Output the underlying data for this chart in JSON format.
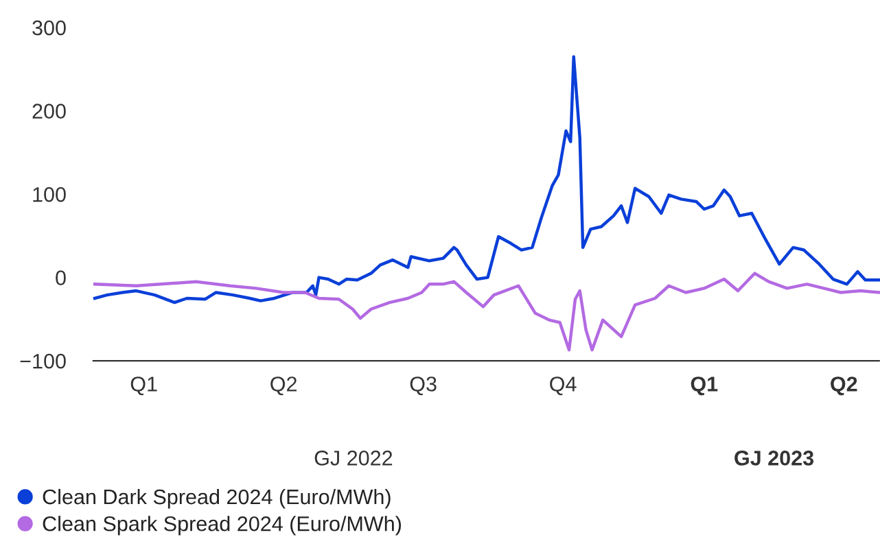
{
  "chart_data": {
    "type": "line",
    "xlim": [
      "2022-01-13",
      "2023-06-09"
    ],
    "xticks": [
      {
        "value": "2022-02-15",
        "label": "Q1"
      },
      {
        "value": "2022-05-17",
        "label": "Q2"
      },
      {
        "value": "2022-08-16",
        "label": "Q3"
      },
      {
        "value": "2022-11-15",
        "label": "Q4"
      },
      {
        "value": "2023-02-15",
        "label": "Q1"
      },
      {
        "value": "2023-05-17",
        "label": "Q2"
      }
    ],
    "ylim": [
      -100,
      300
    ],
    "yticks": [
      {
        "value": -100,
        "label": "−100"
      },
      0,
      100,
      200,
      300
    ],
    "annotations": [
      "GJ 2022",
      "GJ 2023"
    ],
    "legend": "bottom",
    "series": [
      {
        "name": "Clean Dark Spread 2024 (Euro/MWh)",
        "color": "#0a3fd8",
        "x": [
          "2022-01-14",
          "2022-01-22",
          "2022-02-01",
          "2022-02-10",
          "2022-02-22",
          "2022-03-07",
          "2022-03-15",
          "2022-03-27",
          "2022-04-03",
          "2022-04-14",
          "2022-04-25",
          "2022-05-02",
          "2022-05-11",
          "2022-05-23",
          "2022-06-01",
          "2022-06-05",
          "2022-06-07",
          "2022-06-09",
          "2022-06-15",
          "2022-06-22",
          "2022-06-27",
          "2022-07-04",
          "2022-07-13",
          "2022-07-19",
          "2022-07-27",
          "2022-08-06",
          "2022-08-08",
          "2022-08-20",
          "2022-08-29",
          "2022-09-05",
          "2022-09-07",
          "2022-09-13",
          "2022-09-20",
          "2022-09-27",
          "2022-10-04",
          "2022-10-12",
          "2022-10-19",
          "2022-10-26",
          "2022-11-01",
          "2022-11-08",
          "2022-11-12",
          "2022-11-17",
          "2022-11-20",
          "2022-11-22",
          "2022-11-26",
          "2022-11-28",
          "2022-12-03",
          "2022-12-10",
          "2022-12-18",
          "2022-12-23",
          "2022-12-27",
          "2023-01-01",
          "2023-01-10",
          "2023-01-18",
          "2023-01-23",
          "2023-01-31",
          "2023-02-10",
          "2023-02-15",
          "2023-02-21",
          "2023-02-28",
          "2023-03-04",
          "2023-03-10",
          "2023-03-18",
          "2023-03-26",
          "2023-04-05",
          "2023-04-14",
          "2023-04-21",
          "2023-05-01",
          "2023-05-10",
          "2023-05-19",
          "2023-05-26",
          "2023-05-31",
          "2023-06-09"
        ],
        "values": [
          -25,
          -21,
          -18,
          -16,
          -21,
          -30,
          -25,
          -26,
          -18,
          -21,
          -25,
          -28,
          -25,
          -18,
          -18,
          -10,
          -21,
          0,
          -2,
          -8,
          -2,
          -3,
          5,
          15,
          21,
          12,
          25,
          20,
          23,
          36,
          33,
          15,
          -2,
          0,
          49,
          41,
          33,
          36,
          72,
          110,
          123,
          176,
          163,
          265,
          168,
          36,
          58,
          61,
          74,
          86,
          66,
          107,
          97,
          77,
          99,
          94,
          91,
          82,
          86,
          105,
          97,
          74,
          77,
          49,
          16,
          36,
          33,
          16,
          -2,
          -8,
          7,
          -3,
          -3
        ]
      },
      {
        "name": "Clean Spark Spread 2024 (Euro/MWh)",
        "color": "#b36ae2",
        "x": [
          "2022-01-14",
          "2022-02-10",
          "2022-02-26",
          "2022-03-21",
          "2022-04-12",
          "2022-04-29",
          "2022-05-17",
          "2022-05-31",
          "2022-06-09",
          "2022-06-22",
          "2022-07-01",
          "2022-07-06",
          "2022-07-13",
          "2022-07-25",
          "2022-08-06",
          "2022-08-15",
          "2022-08-20",
          "2022-08-29",
          "2022-09-05",
          "2022-09-13",
          "2022-09-24",
          "2022-10-01",
          "2022-10-17",
          "2022-10-28",
          "2022-11-06",
          "2022-11-13",
          "2022-11-19",
          "2022-11-23",
          "2022-11-26",
          "2022-11-30",
          "2022-12-04",
          "2022-12-11",
          "2022-12-23",
          "2023-01-01",
          "2023-01-14",
          "2023-01-23",
          "2023-02-03",
          "2023-02-15",
          "2023-02-28",
          "2023-03-09",
          "2023-03-20",
          "2023-03-29",
          "2023-04-10",
          "2023-04-23",
          "2023-05-04",
          "2023-05-15",
          "2023-05-28",
          "2023-06-09"
        ],
        "values": [
          -8,
          -10,
          -8,
          -5,
          -10,
          -13,
          -18,
          -18,
          -25,
          -26,
          -38,
          -49,
          -38,
          -30,
          -25,
          -18,
          -8,
          -8,
          -5,
          -18,
          -35,
          -21,
          -10,
          -43,
          -51,
          -54,
          -87,
          -26,
          -16,
          -63,
          -87,
          -51,
          -71,
          -33,
          -25,
          -10,
          -18,
          -13,
          -2,
          -16,
          5,
          -5,
          -13,
          -8,
          -13,
          -18,
          -16,
          -18
        ]
      }
    ]
  }
}
